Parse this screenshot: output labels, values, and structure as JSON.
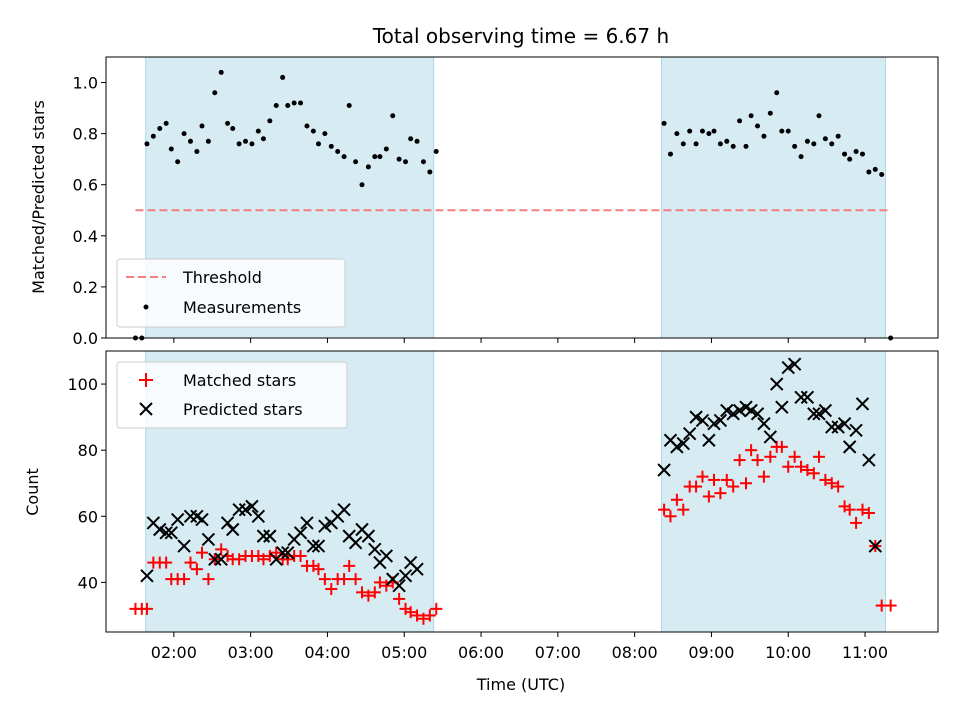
{
  "chart_data": [
    {
      "type": "scatter",
      "title": "Total observing time = 6.67 h",
      "xlabel": "",
      "ylabel": "Matched/Predicted stars",
      "xlim": [
        "01:07",
        "11:57"
      ],
      "ylim": [
        0,
        1.1
      ],
      "yticks": [
        "0.0",
        "0.2",
        "0.4",
        "0.6",
        "0.8",
        "1.0"
      ],
      "shaded_intervals": [
        [
          "01:38",
          "05:23"
        ],
        [
          "08:21",
          "11:16"
        ]
      ],
      "threshold": {
        "name": "Threshold",
        "value": 0.5,
        "x_range": [
          "01:30",
          "11:20"
        ],
        "color": "#f08080",
        "style": "dashed"
      },
      "legend": {
        "placement": "lower left",
        "entries": [
          "Threshold",
          "Measurements"
        ]
      },
      "series": [
        {
          "name": "Measurements",
          "color": "#000000",
          "marker": "dot",
          "points": [
            [
              "01:30",
              0.0
            ],
            [
              "01:35",
              0.0
            ],
            [
              "01:39",
              0.76
            ],
            [
              "01:44",
              0.79
            ],
            [
              "01:49",
              0.82
            ],
            [
              "01:54",
              0.84
            ],
            [
              "01:58",
              0.74
            ],
            [
              "02:03",
              0.69
            ],
            [
              "02:08",
              0.8
            ],
            [
              "02:13",
              0.77
            ],
            [
              "02:18",
              0.73
            ],
            [
              "02:22",
              0.83
            ],
            [
              "02:27",
              0.77
            ],
            [
              "02:32",
              0.96
            ],
            [
              "02:37",
              1.04
            ],
            [
              "02:42",
              0.84
            ],
            [
              "02:46",
              0.82
            ],
            [
              "02:51",
              0.76
            ],
            [
              "02:56",
              0.77
            ],
            [
              "03:01",
              0.76
            ],
            [
              "03:06",
              0.81
            ],
            [
              "03:10",
              0.78
            ],
            [
              "03:15",
              0.85
            ],
            [
              "03:20",
              0.91
            ],
            [
              "03:25",
              1.02
            ],
            [
              "03:29",
              0.91
            ],
            [
              "03:34",
              0.92
            ],
            [
              "03:39",
              0.92
            ],
            [
              "03:44",
              0.83
            ],
            [
              "03:49",
              0.81
            ],
            [
              "03:53",
              0.76
            ],
            [
              "03:58",
              0.8
            ],
            [
              "04:03",
              0.75
            ],
            [
              "04:08",
              0.73
            ],
            [
              "04:13",
              0.71
            ],
            [
              "04:17",
              0.91
            ],
            [
              "04:22",
              0.69
            ],
            [
              "04:27",
              0.6
            ],
            [
              "04:32",
              0.67
            ],
            [
              "04:37",
              0.71
            ],
            [
              "04:41",
              0.71
            ],
            [
              "04:46",
              0.74
            ],
            [
              "04:51",
              0.87
            ],
            [
              "04:56",
              0.7
            ],
            [
              "05:01",
              0.69
            ],
            [
              "05:05",
              0.78
            ],
            [
              "05:10",
              0.77
            ],
            [
              "05:15",
              0.69
            ],
            [
              "05:20",
              0.65
            ],
            [
              "05:25",
              0.73
            ],
            [
              "08:23",
              0.84
            ],
            [
              "08:28",
              0.72
            ],
            [
              "08:33",
              0.8
            ],
            [
              "08:38",
              0.76
            ],
            [
              "08:43",
              0.81
            ],
            [
              "08:48",
              0.76
            ],
            [
              "08:53",
              0.81
            ],
            [
              "08:58",
              0.8
            ],
            [
              "09:02",
              0.81
            ],
            [
              "09:07",
              0.76
            ],
            [
              "09:12",
              0.77
            ],
            [
              "09:17",
              0.75
            ],
            [
              "09:22",
              0.85
            ],
            [
              "09:27",
              0.75
            ],
            [
              "09:31",
              0.87
            ],
            [
              "09:36",
              0.83
            ],
            [
              "09:41",
              0.79
            ],
            [
              "09:46",
              0.88
            ],
            [
              "09:51",
              0.96
            ],
            [
              "09:55",
              0.81
            ],
            [
              "10:00",
              0.81
            ],
            [
              "10:05",
              0.75
            ],
            [
              "10:10",
              0.71
            ],
            [
              "10:15",
              0.77
            ],
            [
              "10:20",
              0.76
            ],
            [
              "10:24",
              0.87
            ],
            [
              "10:29",
              0.78
            ],
            [
              "10:34",
              0.76
            ],
            [
              "10:39",
              0.79
            ],
            [
              "10:44",
              0.72
            ],
            [
              "10:48",
              0.7
            ],
            [
              "10:53",
              0.73
            ],
            [
              "10:58",
              0.72
            ],
            [
              "11:03",
              0.65
            ],
            [
              "11:08",
              0.66
            ],
            [
              "11:13",
              0.64
            ],
            [
              "11:20",
              0.0
            ]
          ]
        }
      ]
    },
    {
      "type": "scatter",
      "title": "",
      "xlabel": "Time (UTC)",
      "ylabel": "Count",
      "xlim": [
        "01:07",
        "11:57"
      ],
      "ylim": [
        25,
        110
      ],
      "xticks": [
        "02:00",
        "03:00",
        "04:00",
        "05:00",
        "06:00",
        "07:00",
        "08:00",
        "09:00",
        "10:00",
        "11:00"
      ],
      "yticks": [
        "40",
        "60",
        "80",
        "100"
      ],
      "shaded_intervals": [
        [
          "01:38",
          "05:23"
        ],
        [
          "08:21",
          "11:16"
        ]
      ],
      "legend": {
        "placement": "upper left",
        "entries": [
          "Matched stars",
          "Predicted stars"
        ]
      },
      "series": [
        {
          "name": "Matched stars",
          "color": "#ff0000",
          "marker": "plus",
          "points": [
            [
              "01:30",
              32
            ],
            [
              "01:35",
              32
            ],
            [
              "01:39",
              32
            ],
            [
              "01:44",
              46
            ],
            [
              "01:49",
              46
            ],
            [
              "01:54",
              46
            ],
            [
              "01:58",
              41
            ],
            [
              "02:03",
              41
            ],
            [
              "02:08",
              41
            ],
            [
              "02:13",
              46
            ],
            [
              "02:18",
              44
            ],
            [
              "02:22",
              49
            ],
            [
              "02:27",
              41
            ],
            [
              "02:32",
              47
            ],
            [
              "02:37",
              50
            ],
            [
              "02:42",
              48
            ],
            [
              "02:46",
              47
            ],
            [
              "02:51",
              47
            ],
            [
              "02:56",
              48
            ],
            [
              "03:01",
              48
            ],
            [
              "03:06",
              48
            ],
            [
              "03:10",
              47
            ],
            [
              "03:15",
              48
            ],
            [
              "03:20",
              49
            ],
            [
              "03:25",
              47
            ],
            [
              "03:29",
              47
            ],
            [
              "03:34",
              48
            ],
            [
              "03:39",
              48
            ],
            [
              "03:44",
              45
            ],
            [
              "03:49",
              45
            ],
            [
              "03:53",
              44
            ],
            [
              "03:58",
              41
            ],
            [
              "04:03",
              38
            ],
            [
              "04:08",
              41
            ],
            [
              "04:13",
              41
            ],
            [
              "04:17",
              45
            ],
            [
              "04:22",
              41
            ],
            [
              "04:27",
              37
            ],
            [
              "04:32",
              36
            ],
            [
              "04:37",
              37
            ],
            [
              "04:41",
              40
            ],
            [
              "04:46",
              39
            ],
            [
              "04:51",
              40
            ],
            [
              "04:56",
              35
            ],
            [
              "05:01",
              32
            ],
            [
              "05:05",
              31
            ],
            [
              "05:10",
              30
            ],
            [
              "05:15",
              29
            ],
            [
              "05:20",
              30
            ],
            [
              "05:25",
              32
            ],
            [
              "08:23",
              62
            ],
            [
              "08:28",
              60
            ],
            [
              "08:33",
              65
            ],
            [
              "08:38",
              62
            ],
            [
              "08:43",
              69
            ],
            [
              "08:48",
              69
            ],
            [
              "08:53",
              72
            ],
            [
              "08:58",
              66
            ],
            [
              "09:02",
              71
            ],
            [
              "09:07",
              67
            ],
            [
              "09:12",
              71
            ],
            [
              "09:17",
              69
            ],
            [
              "09:22",
              77
            ],
            [
              "09:27",
              70
            ],
            [
              "09:31",
              80
            ],
            [
              "09:36",
              77
            ],
            [
              "09:41",
              72
            ],
            [
              "09:46",
              78
            ],
            [
              "09:51",
              81
            ],
            [
              "09:55",
              81
            ],
            [
              "10:00",
              75
            ],
            [
              "10:05",
              78
            ],
            [
              "10:10",
              75
            ],
            [
              "10:15",
              74
            ],
            [
              "10:20",
              73
            ],
            [
              "10:24",
              78
            ],
            [
              "10:29",
              71
            ],
            [
              "10:34",
              70
            ],
            [
              "10:39",
              69
            ],
            [
              "10:44",
              63
            ],
            [
              "10:48",
              62
            ],
            [
              "10:53",
              58
            ],
            [
              "10:58",
              62
            ],
            [
              "11:03",
              61
            ],
            [
              "11:08",
              51
            ],
            [
              "11:13",
              33
            ],
            [
              "11:20",
              33
            ]
          ]
        },
        {
          "name": "Predicted stars",
          "color": "#000000",
          "marker": "x",
          "points": [
            [
              "01:39",
              42
            ],
            [
              "01:44",
              58
            ],
            [
              "01:49",
              56
            ],
            [
              "01:54",
              55
            ],
            [
              "01:58",
              55
            ],
            [
              "02:03",
              59
            ],
            [
              "02:08",
              51
            ],
            [
              "02:13",
              60
            ],
            [
              "02:18",
              60
            ],
            [
              "02:22",
              59
            ],
            [
              "02:27",
              53
            ],
            [
              "02:32",
              47
            ],
            [
              "02:37",
              47
            ],
            [
              "02:42",
              58
            ],
            [
              "02:46",
              56
            ],
            [
              "02:51",
              62
            ],
            [
              "02:56",
              62
            ],
            [
              "03:01",
              63
            ],
            [
              "03:06",
              60
            ],
            [
              "03:10",
              54
            ],
            [
              "03:15",
              54
            ],
            [
              "03:20",
              47
            ],
            [
              "03:25",
              49
            ],
            [
              "03:29",
              49
            ],
            [
              "03:34",
              53
            ],
            [
              "03:39",
              55
            ],
            [
              "03:44",
              58
            ],
            [
              "03:49",
              51
            ],
            [
              "03:53",
              51
            ],
            [
              "03:58",
              57
            ],
            [
              "04:03",
              58
            ],
            [
              "04:08",
              60
            ],
            [
              "04:13",
              62
            ],
            [
              "04:17",
              54
            ],
            [
              "04:22",
              52
            ],
            [
              "04:27",
              56
            ],
            [
              "04:32",
              54
            ],
            [
              "04:37",
              50
            ],
            [
              "04:41",
              46
            ],
            [
              "04:46",
              48
            ],
            [
              "04:51",
              41
            ],
            [
              "04:56",
              39
            ],
            [
              "05:01",
              42
            ],
            [
              "05:05",
              46
            ],
            [
              "05:10",
              44
            ],
            [
              "08:23",
              74
            ],
            [
              "08:28",
              83
            ],
            [
              "08:33",
              81
            ],
            [
              "08:38",
              82
            ],
            [
              "08:43",
              85
            ],
            [
              "08:48",
              90
            ],
            [
              "08:53",
              89
            ],
            [
              "08:58",
              83
            ],
            [
              "09:02",
              88
            ],
            [
              "09:07",
              89
            ],
            [
              "09:12",
              92
            ],
            [
              "09:17",
              91
            ],
            [
              "09:22",
              92
            ],
            [
              "09:27",
              93
            ],
            [
              "09:31",
              92
            ],
            [
              "09:36",
              91
            ],
            [
              "09:41",
              88
            ],
            [
              "09:46",
              84
            ],
            [
              "09:51",
              100
            ],
            [
              "09:55",
              93
            ],
            [
              "10:00",
              105
            ],
            [
              "10:05",
              106
            ],
            [
              "10:10",
              96
            ],
            [
              "10:15",
              96
            ],
            [
              "10:20",
              91
            ],
            [
              "10:24",
              91
            ],
            [
              "10:29",
              92
            ],
            [
              "10:34",
              87
            ],
            [
              "10:39",
              87
            ],
            [
              "10:44",
              88
            ],
            [
              "10:48",
              81
            ],
            [
              "10:53",
              86
            ],
            [
              "10:58",
              94
            ],
            [
              "11:03",
              77
            ],
            [
              "11:08",
              51
            ]
          ]
        }
      ]
    }
  ]
}
